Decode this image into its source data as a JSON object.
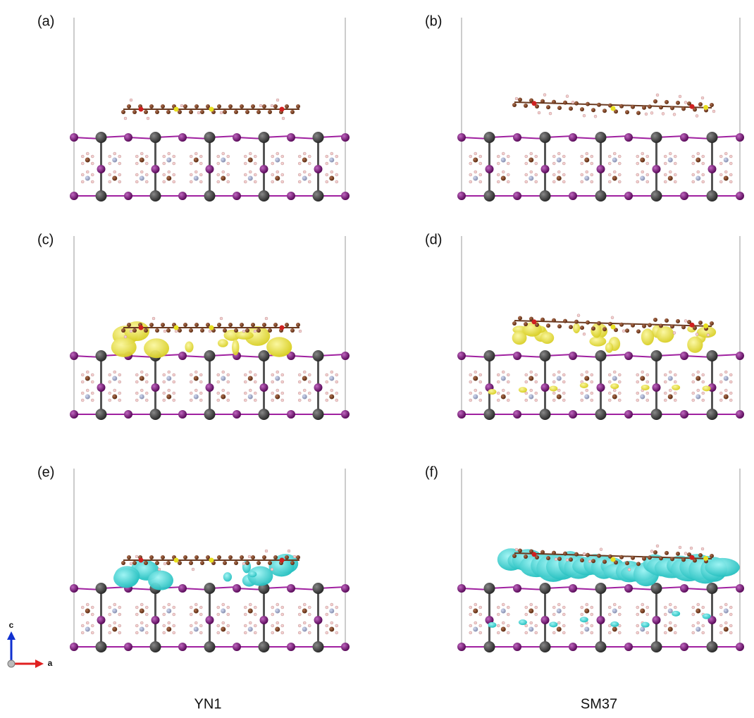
{
  "panels": [
    {
      "label": "(a)"
    },
    {
      "label": "(b)"
    },
    {
      "label": "(c)"
    },
    {
      "label": "(d)"
    },
    {
      "label": "(e)"
    },
    {
      "label": "(f)"
    }
  ],
  "columns": [
    "YN1",
    "SM37"
  ],
  "axis_labels": [
    "c",
    "a"
  ]
}
